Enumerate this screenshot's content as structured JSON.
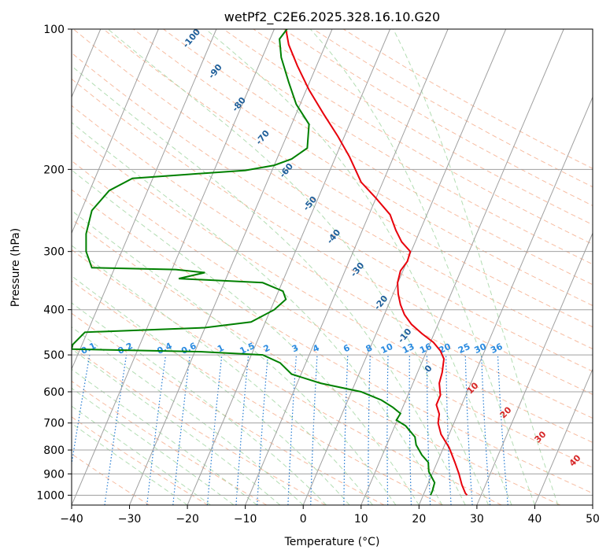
{
  "chart_data": {
    "type": "line",
    "title": "wetPf2_C2E6.2025.328.16.10.G20",
    "xlabel": "Temperature (°C)",
    "ylabel": "Pressure (hPa)",
    "xlim": [
      -40,
      50
    ],
    "ylim": [
      1050,
      100
    ],
    "y_scale": "log",
    "x_ticks": [
      "−40",
      "−30",
      "−20",
      "−10",
      "0",
      "10",
      "20",
      "30",
      "40",
      "50"
    ],
    "y_ticks": [
      "100",
      "200",
      "300",
      "400",
      "500",
      "600",
      "700",
      "800",
      "900",
      "1000"
    ],
    "grid": true,
    "colors": {
      "temperature": "#e8000b",
      "dewpoint": "#008000",
      "isotherm": "#a0a0a0",
      "dry_adiabat": "#f4a582",
      "moist_adiabat": "#a6d7a6",
      "mixing_ratio": "#1f78d1",
      "moist_label": "#1f5f9a",
      "dry_label": "#d62728"
    },
    "series": [
      {
        "key": "temperature",
        "points": [
          [
            -3,
            100
          ],
          [
            -2.5,
            108
          ],
          [
            -1,
            120
          ],
          [
            1,
            135
          ],
          [
            3.5,
            152
          ],
          [
            6,
            170
          ],
          [
            8,
            188
          ],
          [
            9,
            200
          ],
          [
            10,
            213
          ],
          [
            12.5,
            230
          ],
          [
            15,
            250
          ],
          [
            16,
            270
          ],
          [
            17,
            286
          ],
          [
            18.5,
            300
          ],
          [
            18,
            315
          ],
          [
            16.8,
            330
          ],
          [
            16.3,
            350
          ],
          [
            16.4,
            370
          ],
          [
            16.8,
            390
          ],
          [
            17.5,
            410
          ],
          [
            18.7,
            430
          ],
          [
            20.5,
            450
          ],
          [
            22.5,
            470
          ],
          [
            23.7,
            490
          ],
          [
            24.3,
            510
          ],
          [
            24,
            545
          ],
          [
            23.5,
            575
          ],
          [
            23.7,
            610
          ],
          [
            23,
            640
          ],
          [
            23.5,
            670
          ],
          [
            23.3,
            700
          ],
          [
            23.8,
            740
          ],
          [
            25.2,
            790
          ],
          [
            26.2,
            850
          ],
          [
            26.9,
            900
          ],
          [
            27.4,
            950
          ],
          [
            28,
            990
          ],
          [
            28.3,
            1000
          ]
        ]
      },
      {
        "key": "dewpoint",
        "points": [
          [
            -2.8,
            100
          ],
          [
            -4.1,
            105
          ],
          [
            -3.8,
            115
          ],
          [
            -2.5,
            130
          ],
          [
            -1.2,
            145
          ],
          [
            1.0,
            160
          ],
          [
            0.7,
            180
          ],
          [
            -2,
            190
          ],
          [
            -5,
            196
          ],
          [
            -10,
            201
          ],
          [
            -20,
            205
          ],
          [
            -29.5,
            209
          ],
          [
            -33.5,
            222
          ],
          [
            -36.5,
            245
          ],
          [
            -37.5,
            275
          ],
          [
            -37.5,
            300
          ],
          [
            -36.5,
            325
          ],
          [
            -22,
            328
          ],
          [
            -17,
            333
          ],
          [
            -21.5,
            343
          ],
          [
            -7,
            350
          ],
          [
            -3.5,
            365
          ],
          [
            -3.0,
            380
          ],
          [
            -5,
            400
          ],
          [
            -9,
            425
          ],
          [
            -17,
            437
          ],
          [
            -37.7,
            447
          ],
          [
            -39.8,
            475
          ],
          [
            -40,
            486
          ],
          [
            -18,
            492
          ],
          [
            -7,
            500
          ],
          [
            -4,
            520
          ],
          [
            -2,
            550
          ],
          [
            3,
            575
          ],
          [
            10,
            600
          ],
          [
            13.5,
            625
          ],
          [
            15.5,
            648
          ],
          [
            16.8,
            668
          ],
          [
            16.1,
            690
          ],
          [
            17.7,
            710
          ],
          [
            19.3,
            750
          ],
          [
            19.5,
            780
          ],
          [
            20.5,
            820
          ],
          [
            21.6,
            850
          ],
          [
            21.7,
            890
          ],
          [
            22.7,
            940
          ],
          [
            22.3,
            980
          ],
          [
            22,
            1000
          ]
        ]
      }
    ],
    "isotherm_labels": [],
    "moist_adiabat_labels": [
      "-100",
      "-90",
      "-80",
      "-70",
      "-60",
      "-50",
      "-40",
      "-30",
      "-20",
      "-10",
      "0"
    ],
    "dry_adiabat_labels": [
      "10",
      "20",
      "30",
      "40"
    ],
    "mixing_ratio_labels": [
      "0.1",
      "0.2",
      "0.4",
      "0.6",
      "1",
      "1.5",
      "2",
      "3",
      "4",
      "6",
      "8",
      "10",
      "13",
      "16",
      "20",
      "25",
      "30",
      "36"
    ]
  }
}
